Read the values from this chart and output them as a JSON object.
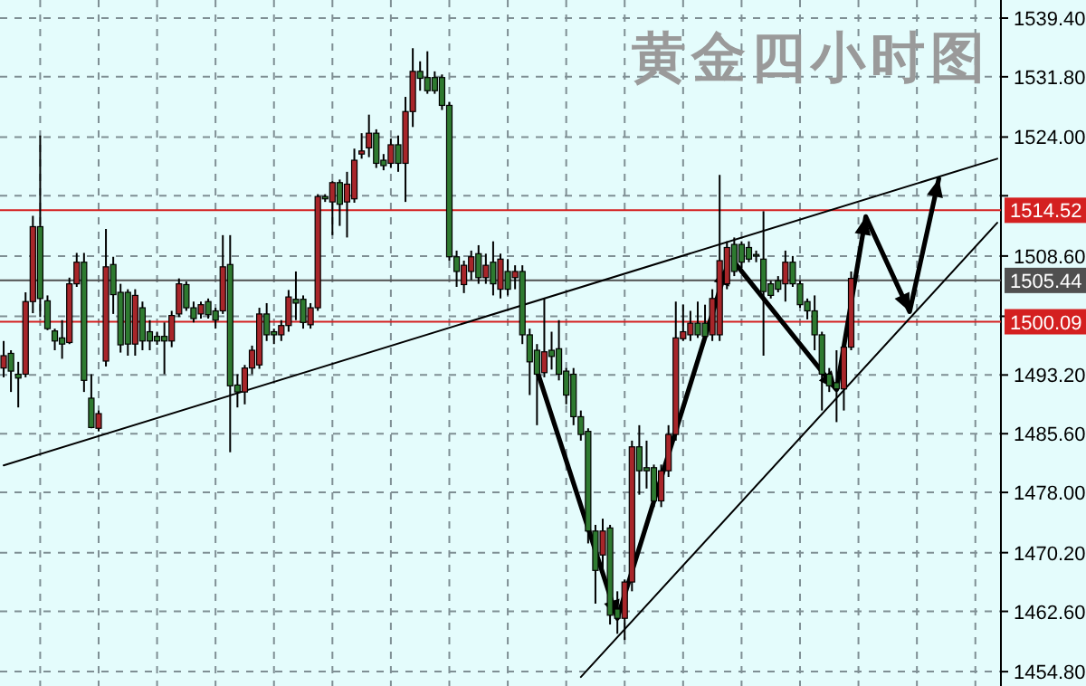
{
  "chart_data": {
    "type": "candlestick",
    "title": "黄金四小时图",
    "categories": [
      null,
      null,
      null,
      null,
      null,
      null,
      null,
      null,
      null,
      null,
      null,
      null,
      null,
      null,
      null,
      null,
      null,
      null,
      null,
      null,
      null,
      null,
      null,
      null,
      null,
      null,
      null,
      null,
      null,
      null,
      null,
      null,
      null,
      null,
      null,
      null,
      null,
      null,
      null,
      null,
      null,
      null,
      null,
      null,
      null,
      null,
      null,
      null,
      null,
      null,
      null,
      null,
      null,
      null,
      null,
      null,
      null,
      null,
      null,
      null,
      null,
      null,
      null,
      null,
      null,
      null,
      null,
      null,
      null,
      null,
      null,
      null,
      null,
      null,
      null,
      null,
      null,
      null,
      null,
      null,
      null,
      null,
      null,
      null,
      null,
      null,
      null,
      null,
      null,
      null,
      null,
      null,
      null,
      null,
      null,
      null,
      null,
      null,
      null,
      null,
      null,
      null,
      null,
      null,
      null,
      null,
      null,
      null,
      null,
      null,
      null,
      null,
      null,
      null,
      null,
      null,
      null,
      null,
      null,
      null,
      null,
      null,
      null,
      null,
      null,
      null,
      null,
      null,
      null,
      null,
      null,
      null,
      null,
      null,
      null,
      null,
      null
    ],
    "ohlc": [
      [
        1494.1,
        1497.6,
        1492.9,
        1495.7
      ],
      [
        1496.0,
        1496.4,
        1491.0,
        1493.7
      ],
      [
        1493.3,
        1494.9,
        1489.0,
        1492.8
      ],
      [
        1493.3,
        1503.9,
        1492.9,
        1502.7
      ],
      [
        1502.7,
        1513.8,
        1501.2,
        1512.4
      ],
      [
        1512.4,
        1524.2,
        1500.7,
        1503.1
      ],
      [
        1502.8,
        1503.5,
        1499.0,
        1499.2
      ],
      [
        1498.9,
        1499.2,
        1496.4,
        1497.6
      ],
      [
        1498.0,
        1500.3,
        1495.3,
        1497.2
      ],
      [
        1497.4,
        1505.8,
        1497.2,
        1505.0
      ],
      [
        1505.0,
        1509.0,
        1504.6,
        1507.8
      ],
      [
        1507.8,
        1509.0,
        1491.0,
        1492.5
      ],
      [
        1490.2,
        1493.3,
        1486.3,
        1486.4
      ],
      [
        1486.3,
        1488.6,
        1485.9,
        1488.2
      ],
      [
        1495.0,
        1512.1,
        1494.3,
        1507.2
      ],
      [
        1507.5,
        1508.5,
        1501.1,
        1503.6
      ],
      [
        1503.9,
        1505.0,
        1496.1,
        1497.1
      ],
      [
        1503.9,
        1504.3,
        1495.7,
        1497.2
      ],
      [
        1497.2,
        1504.3,
        1495.7,
        1503.5
      ],
      [
        1501.9,
        1502.7,
        1496.4,
        1497.6
      ],
      [
        1498.8,
        1500.3,
        1496.4,
        1497.6
      ],
      [
        1498.2,
        1498.8,
        1497.1,
        1497.6
      ],
      [
        1498.2,
        1500.0,
        1493.3,
        1497.6
      ],
      [
        1497.6,
        1501.5,
        1496.8,
        1500.9
      ],
      [
        1501.1,
        1505.7,
        1500.7,
        1505.0
      ],
      [
        1504.9,
        1505.3,
        1501.5,
        1501.9
      ],
      [
        1501.9,
        1502.7,
        1500.0,
        1500.5
      ],
      [
        1501.1,
        1502.7,
        1500.5,
        1502.3
      ],
      [
        1502.7,
        1503.1,
        1500.5,
        1501.0
      ],
      [
        1501.5,
        1501.9,
        1499.2,
        1500.3
      ],
      [
        1501.5,
        1511.3,
        1501.1,
        1507.2
      ],
      [
        1507.5,
        1511.3,
        1483.2,
        1491.8
      ],
      [
        1491.9,
        1493.3,
        1489.0,
        1491.0
      ],
      [
        1491.0,
        1494.5,
        1489.4,
        1494.1
      ],
      [
        1494.1,
        1497.0,
        1493.3,
        1496.4
      ],
      [
        1494.5,
        1501.9,
        1494.0,
        1501.1
      ],
      [
        1501.1,
        1502.5,
        1497.6,
        1498.4
      ],
      [
        1498.8,
        1499.2,
        1497.2,
        1498.4
      ],
      [
        1498.4,
        1500.3,
        1497.6,
        1499.6
      ],
      [
        1499.6,
        1504.2,
        1498.8,
        1503.3
      ],
      [
        1503.0,
        1506.6,
        1500.3,
        1502.5
      ],
      [
        1503.0,
        1503.5,
        1499.2,
        1500.0
      ],
      [
        1499.7,
        1502.5,
        1499.2,
        1501.9
      ],
      [
        1501.9,
        1516.6,
        1501.5,
        1516.3
      ],
      [
        1516.3,
        1516.6,
        1515.6,
        1516.0
      ],
      [
        1515.6,
        1518.3,
        1511.3,
        1518.1
      ],
      [
        1518.1,
        1518.5,
        1512.5,
        1515.3
      ],
      [
        1515.6,
        1519.5,
        1511.0,
        1517.9
      ],
      [
        1516.0,
        1522.5,
        1515.5,
        1521.0
      ],
      [
        1521.8,
        1524.5,
        1521.2,
        1522.2
      ],
      [
        1522.6,
        1526.9,
        1521.4,
        1524.5
      ],
      [
        1524.5,
        1525.0,
        1520.0,
        1520.6
      ],
      [
        1521.0,
        1521.8,
        1519.7,
        1520.3
      ],
      [
        1520.6,
        1523.8,
        1520.0,
        1523.0
      ],
      [
        1523.0,
        1524.2,
        1519.5,
        1520.6
      ],
      [
        1520.6,
        1529.2,
        1515.6,
        1527.3
      ],
      [
        1527.3,
        1535.5,
        1525.3,
        1532.5
      ],
      [
        1532.5,
        1533.8,
        1530.0,
        1531.6
      ],
      [
        1531.7,
        1535.1,
        1529.6,
        1530.0
      ],
      [
        1531.7,
        1532.5,
        1529.6,
        1530.0
      ],
      [
        1531.7,
        1532.1,
        1527.5,
        1528.1
      ],
      [
        1528.1,
        1528.5,
        1508.0,
        1508.5
      ],
      [
        1508.5,
        1509.3,
        1504.6,
        1506.6
      ],
      [
        1504.9,
        1508.0,
        1503.8,
        1507.4
      ],
      [
        1506.6,
        1509.3,
        1505.5,
        1508.5
      ],
      [
        1508.9,
        1510.0,
        1505.0,
        1505.8
      ],
      [
        1505.8,
        1508.9,
        1505.0,
        1507.4
      ],
      [
        1507.8,
        1510.5,
        1503.5,
        1505.0
      ],
      [
        1504.3,
        1508.9,
        1503.1,
        1508.2
      ],
      [
        1506.6,
        1508.2,
        1503.5,
        1504.3
      ],
      [
        1505.8,
        1507.4,
        1504.3,
        1506.6
      ],
      [
        1506.6,
        1507.4,
        1497.2,
        1498.4
      ],
      [
        1498.4,
        1499.2,
        1490.6,
        1494.9
      ],
      [
        1496.4,
        1497.2,
        1486.7,
        1493.3
      ],
      [
        1493.5,
        1503.1,
        1492.9,
        1496.2
      ],
      [
        1496.4,
        1498.8,
        1493.9,
        1495.6
      ],
      [
        1496.6,
        1500.3,
        1492.5,
        1493.3
      ],
      [
        1493.7,
        1494.1,
        1489.4,
        1490.6
      ],
      [
        1493.3,
        1494.1,
        1486.7,
        1487.8
      ],
      [
        1487.8,
        1488.6,
        1484.7,
        1485.5
      ],
      [
        1485.9,
        1486.3,
        1471.4,
        1473.0
      ],
      [
        1473.0,
        1473.8,
        1463.6,
        1467.9
      ],
      [
        1469.9,
        1474.6,
        1467.9,
        1473.0
      ],
      [
        1473.4,
        1473.8,
        1460.9,
        1462.1
      ],
      [
        1462.9,
        1465.2,
        1459.7,
        1461.7
      ],
      [
        1461.7,
        1466.7,
        1458.9,
        1466.4
      ],
      [
        1466.4,
        1484.7,
        1465.2,
        1483.9
      ],
      [
        1483.9,
        1486.7,
        1477.7,
        1480.8
      ],
      [
        1481.2,
        1484.7,
        1478.5,
        1480.8
      ],
      [
        1481.2,
        1481.6,
        1476.1,
        1476.9
      ],
      [
        1476.9,
        1481.6,
        1476.1,
        1480.8
      ],
      [
        1480.8,
        1486.7,
        1480.0,
        1485.5
      ],
      [
        1485.5,
        1502.7,
        1484.7,
        1498.0
      ],
      [
        1497.9,
        1502.3,
        1497.6,
        1498.8
      ],
      [
        1498.4,
        1501.5,
        1497.6,
        1499.9
      ],
      [
        1499.9,
        1502.7,
        1498.0,
        1498.4
      ],
      [
        1499.9,
        1502.3,
        1497.6,
        1498.2
      ],
      [
        1498.4,
        1504.3,
        1497.6,
        1503.1
      ],
      [
        1498.4,
        1519.1,
        1497.6,
        1508.0
      ],
      [
        1505.0,
        1510.5,
        1504.3,
        1509.7
      ],
      [
        1510.1,
        1511.0,
        1506.0,
        1506.6
      ],
      [
        1510.1,
        1510.5,
        1507.0,
        1507.8
      ],
      [
        1509.7,
        1510.5,
        1507.8,
        1508.2
      ],
      [
        1508.8,
        1509.3,
        1507.8,
        1508.6
      ],
      [
        1508.2,
        1514.4,
        1495.7,
        1504.0
      ],
      [
        1505.0,
        1505.4,
        1503.1,
        1503.5
      ],
      [
        1505.4,
        1506.0,
        1503.9,
        1504.3
      ],
      [
        1505.0,
        1509.3,
        1502.7,
        1507.8
      ],
      [
        1507.8,
        1508.6,
        1504.6,
        1505.0
      ],
      [
        1505.0,
        1505.4,
        1501.9,
        1502.3
      ],
      [
        1502.7,
        1503.1,
        1500.4,
        1501.5
      ],
      [
        1501.5,
        1503.5,
        1496.4,
        1498.4
      ],
      [
        1498.4,
        1498.8,
        1488.6,
        1493.3
      ],
      [
        1493.3,
        1494.1,
        1491.0,
        1491.8
      ],
      [
        1492.2,
        1496.4,
        1487.1,
        1491.4
      ],
      [
        1491.4,
        1497.6,
        1488.6,
        1496.8
      ],
      [
        1496.8,
        1506.6,
        1496.4,
        1505.7
      ],
      null,
      null,
      null,
      null,
      null,
      null,
      null,
      null,
      null,
      null,
      null,
      null,
      null,
      null,
      null,
      null,
      null,
      null,
      null,
      null
    ],
    "series": [
      {
        "type": "line",
        "color": "#000000",
        "values": [
          1481.5,
          null,
          null,
          null,
          null,
          null,
          null,
          null,
          null,
          null,
          null,
          null,
          null,
          null,
          null,
          null,
          null,
          null,
          null,
          null,
          null,
          null,
          null,
          null,
          null,
          null,
          null,
          null,
          null,
          null,
          null,
          null,
          null,
          null,
          null,
          null,
          null,
          null,
          null,
          null,
          null,
          null,
          null,
          null,
          null,
          null,
          null,
          null,
          null,
          null,
          null,
          null,
          null,
          null,
          null,
          null,
          null,
          null,
          null,
          null,
          null,
          null,
          null,
          null,
          null,
          null,
          null,
          null,
          null,
          null,
          null,
          null,
          null,
          null,
          null,
          null,
          null,
          null,
          null,
          null,
          null,
          null,
          null,
          null,
          null,
          null,
          null,
          null,
          null,
          null,
          null,
          null,
          null,
          null,
          null,
          null,
          null,
          null,
          null,
          null,
          null,
          null,
          null,
          null,
          null,
          null,
          null,
          null,
          null,
          null,
          null,
          null,
          null,
          null,
          null,
          null,
          null,
          null,
          null,
          null,
          null,
          null,
          null,
          null,
          null,
          null,
          null,
          null,
          null,
          null,
          null,
          null,
          null,
          null,
          null,
          null,
          1521.2
        ]
      },
      {
        "type": "line",
        "color": "#000000",
        "values": [
          null,
          null,
          null,
          null,
          null,
          null,
          null,
          null,
          null,
          null,
          null,
          null,
          null,
          null,
          null,
          null,
          null,
          null,
          null,
          null,
          null,
          null,
          null,
          null,
          null,
          null,
          null,
          null,
          null,
          null,
          null,
          null,
          null,
          null,
          null,
          null,
          null,
          null,
          null,
          null,
          null,
          null,
          null,
          null,
          null,
          null,
          null,
          null,
          null,
          null,
          null,
          null,
          null,
          null,
          null,
          null,
          null,
          null,
          null,
          null,
          null,
          null,
          null,
          null,
          null,
          null,
          null,
          null,
          null,
          null,
          null,
          null,
          null,
          null,
          null,
          null,
          null,
          null,
          null,
          1454.1,
          null,
          null,
          null,
          null,
          null,
          null,
          null,
          null,
          null,
          null,
          null,
          null,
          null,
          null,
          null,
          null,
          null,
          null,
          null,
          null,
          null,
          null,
          null,
          null,
          null,
          null,
          null,
          null,
          null,
          null,
          null,
          null,
          null,
          null,
          null,
          null,
          null,
          null,
          null,
          null,
          null,
          null,
          null,
          null,
          null,
          null,
          null,
          null,
          null,
          null,
          null,
          null,
          null,
          null,
          null,
          null,
          1512.9
        ]
      },
      {
        "type": "line",
        "color": "#000000",
        "values": [
          null,
          null,
          null,
          null,
          null,
          null,
          null,
          null,
          null,
          null,
          null,
          null,
          null,
          null,
          null,
          null,
          null,
          null,
          null,
          null,
          null,
          null,
          null,
          null,
          null,
          null,
          null,
          null,
          null,
          null,
          null,
          null,
          null,
          null,
          null,
          null,
          null,
          null,
          null,
          null,
          null,
          null,
          null,
          null,
          null,
          null,
          null,
          null,
          null,
          null,
          null,
          null,
          null,
          null,
          null,
          null,
          null,
          null,
          null,
          null,
          null,
          null,
          null,
          null,
          null,
          null,
          null,
          null,
          null,
          null,
          null,
          null,
          null,
          1493.8,
          null,
          null,
          null,
          null,
          null,
          null,
          null,
          null,
          null,
          null,
          1461.7,
          null,
          null,
          null,
          null,
          null,
          null,
          null,
          null,
          null,
          null,
          null,
          null,
          null,
          null,
          1507.2,
          null,
          null,
          null,
          null,
          null,
          null,
          null,
          null,
          null,
          null,
          null,
          null,
          null,
          null,
          null,
          null,
          null,
          null,
          null,
          null,
          null,
          null,
          null,
          null,
          null,
          null,
          null,
          null,
          null,
          null,
          null,
          null,
          null,
          null,
          null,
          null,
          null
        ]
      },
      {
        "type": "line",
        "color": "#000000",
        "values": [
          null,
          null,
          null,
          null,
          null,
          null,
          null,
          null,
          null,
          null,
          null,
          null,
          null,
          null,
          null,
          null,
          null,
          null,
          null,
          null,
          null,
          null,
          null,
          null,
          null,
          null,
          null,
          null,
          null,
          null,
          null,
          null,
          null,
          null,
          null,
          null,
          null,
          null,
          null,
          null,
          null,
          null,
          null,
          null,
          null,
          null,
          null,
          null,
          null,
          null,
          null,
          null,
          null,
          null,
          null,
          null,
          null,
          null,
          null,
          null,
          null,
          null,
          null,
          null,
          null,
          null,
          null,
          null,
          null,
          null,
          null,
          null,
          null,
          null,
          null,
          null,
          null,
          null,
          null,
          null,
          null,
          null,
          null,
          null,
          null,
          null,
          null,
          null,
          null,
          null,
          null,
          null,
          null,
          null,
          null,
          null,
          null,
          null,
          null,
          null,
          1507.8,
          null,
          null,
          null,
          null,
          null,
          null,
          null,
          null,
          null,
          null,
          null,
          null,
          null,
          1491.3,
          null,
          null,
          null,
          1513.7,
          null,
          null,
          null,
          null,
          null,
          1501.4,
          null,
          null,
          null,
          1518.6,
          null,
          null,
          null,
          null,
          null,
          null,
          null,
          null
        ]
      }
    ],
    "ylim": [
      1452.94,
      1541.74
    ],
    "yticks": [
      {
        "value": 1454.8,
        "label": "1454.80"
      },
      {
        "value": 1462.6,
        "label": "1462.60"
      },
      {
        "value": 1470.2,
        "label": "1470.20"
      },
      {
        "value": 1478.0,
        "label": "1478.00"
      },
      {
        "value": 1485.6,
        "label": "1485.60"
      },
      {
        "value": 1493.2,
        "label": "1493.20"
      },
      {
        "value": 1500.8,
        "label": null
      },
      {
        "value": 1508.6,
        "label": "1508.60"
      },
      {
        "value": 1516.4,
        "label": null
      },
      {
        "value": 1524.0,
        "label": "1524.00"
      },
      {
        "value": 1531.8,
        "label": "1531.80"
      },
      {
        "value": 1539.4,
        "label": "1539.40"
      }
    ],
    "tick_labels": "y",
    "grid": true,
    "ref_lines": [
      {
        "axis": "y",
        "value": 1514.52,
        "label": "1514.52",
        "color": "#d42020"
      },
      {
        "axis": "y",
        "value": 1505.44,
        "label": "1505.44",
        "color": "#505050"
      },
      {
        "axis": "y",
        "value": 1500.09,
        "label": "1500.09",
        "color": "#d42020"
      }
    ]
  }
}
